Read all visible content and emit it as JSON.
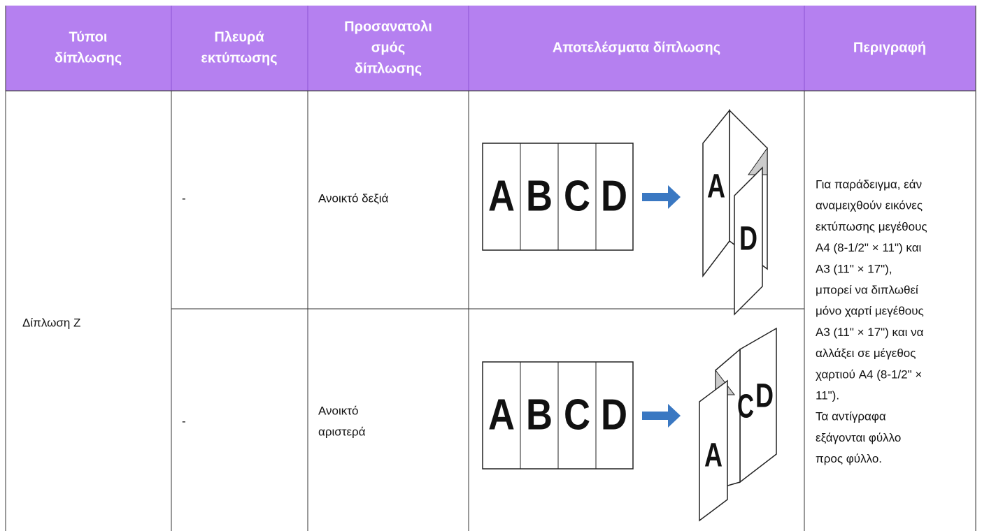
{
  "table": {
    "header": [
      [
        "Τύποι",
        "δίπλωσης"
      ],
      [
        "Πλευρά",
        "εκτύπωσης"
      ],
      [
        "Προσανατολι",
        "σμός",
        "δίπλωσης"
      ],
      [
        "Αποτελέσματα δίπλωσης"
      ],
      [
        "Περιγραφή"
      ]
    ],
    "fold_type": "Δίπλωση Z",
    "rows": [
      {
        "print_side": "-",
        "orientation": [
          "Ανοικτό δεξιά"
        ]
      },
      {
        "print_side": "-",
        "orientation": [
          "Ανοικτό",
          "αριστερά"
        ]
      }
    ],
    "description": [
      "Για παράδειγμα, εάν",
      "αναμειχθούν εικόνες",
      "εκτύπωσης μεγέθους",
      "A4 (8-1/2\" × 11\") και",
      "A3 (11\" × 17\"),",
      "μπορεί να διπλωθεί",
      "μόνο χαρτί μεγέθους",
      "A3 (11\" × 17\") και να",
      "αλλάξει σε μέγεθος",
      "χαρτιού A4 (8-1/2\" ×",
      "11\").",
      "Τα αντίγραφα",
      "εξάγονται φύλλο",
      "προς φύλλο."
    ],
    "illustration_letters": [
      "A",
      "B",
      "C",
      "D"
    ]
  }
}
